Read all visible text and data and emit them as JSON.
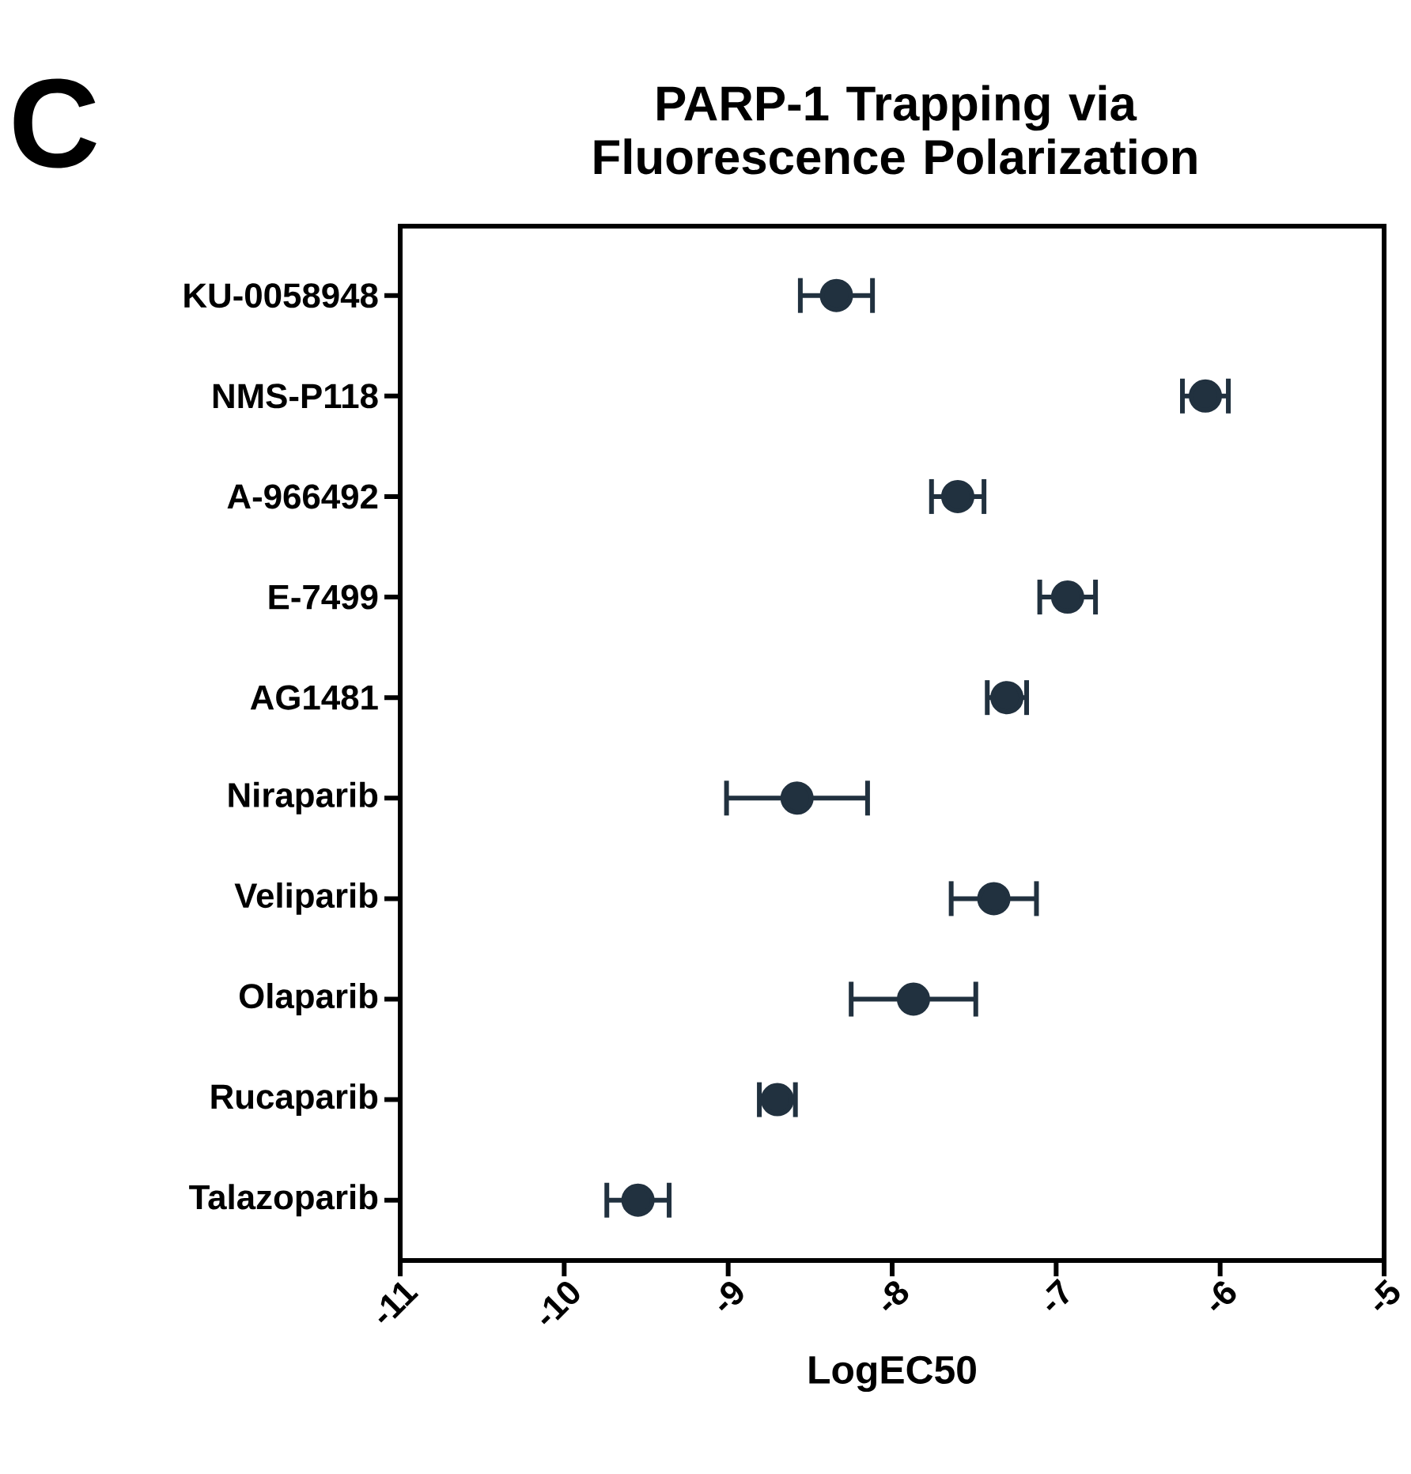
{
  "chart_data": {
    "type": "scatter",
    "orientation": "horizontal",
    "title": "PARP-1 Trapping via\nFluorescence Polarization",
    "xlabel": "LogEC50",
    "annotations": [
      "C"
    ],
    "categories": [
      "KU-0058948",
      "NMS-P118",
      "A-966492",
      "E-7499",
      "AG1481",
      "Niraparib",
      "Veliparib",
      "Olaparib",
      "Rucaparib",
      "Talazoparib"
    ],
    "values": [
      -8.34,
      -6.09,
      -7.6,
      -6.93,
      -7.3,
      -8.58,
      -7.38,
      -7.87,
      -8.7,
      -9.55
    ],
    "errors": [
      0.22,
      0.14,
      0.16,
      0.17,
      0.12,
      0.43,
      0.26,
      0.38,
      0.11,
      0.19
    ],
    "color": "#21313f",
    "marker": "circle",
    "xlim": [
      -11,
      -5
    ],
    "xticks": [
      -11,
      -10,
      -9,
      -8,
      -7,
      -6,
      -5
    ],
    "grid": false
  }
}
